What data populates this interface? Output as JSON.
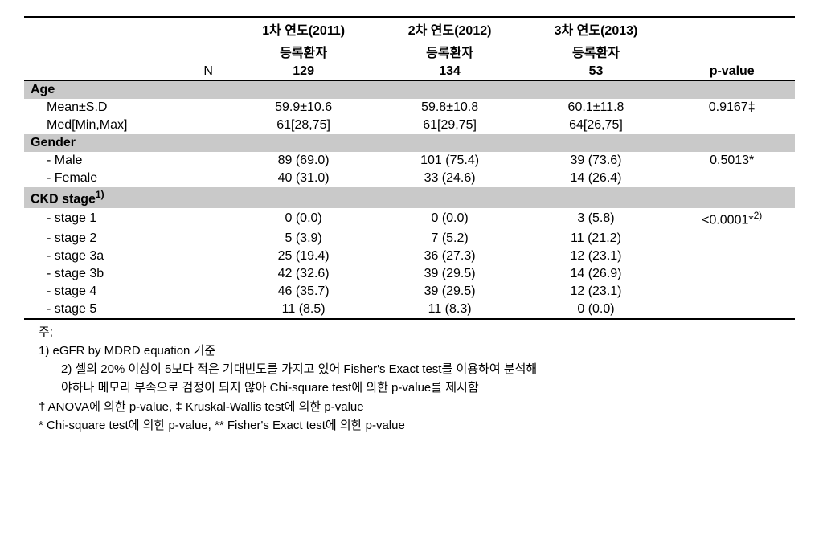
{
  "header": {
    "year1": "1차 연도(2011)",
    "year2": "2차 연도(2012)",
    "year3": "3차 연도(2013)",
    "reg": "등록환자",
    "n_label": "N",
    "n1": "129",
    "n2": "134",
    "n3": "53",
    "pvalue": "p-value"
  },
  "age": {
    "label": "Age",
    "mean_label": "Mean±S.D",
    "mean1": "59.9±10.6",
    "mean2": "59.8±10.8",
    "mean3": "60.1±11.8",
    "mean_p": "0.9167‡",
    "med_label": "Med[Min,Max]",
    "med1": "61[28,75]",
    "med2": "61[29,75]",
    "med3": "64[26,75]"
  },
  "gender": {
    "label": "Gender",
    "male_label": "- Male",
    "male1": "89 (69.0)",
    "male2": "101 (75.4)",
    "male3": "39 (73.6)",
    "male_p": "0.5013*",
    "female_label": "- Female",
    "female1": "40 (31.0)",
    "female2": "33 (24.6)",
    "female3": "14 (26.4)"
  },
  "ckd": {
    "label_pre": "CKD stage",
    "sup": "1)",
    "p": "<0.0001*",
    "p_sup": "2)",
    "rows": [
      {
        "label": "- stage 1",
        "v1": "0 (0.0)",
        "v2": "0 (0.0)",
        "v3": "3 (5.8)"
      },
      {
        "label": "- stage 2",
        "v1": "5 (3.9)",
        "v2": "7 (5.2)",
        "v3": "11 (21.2)"
      },
      {
        "label": "- stage 3a",
        "v1": "25 (19.4)",
        "v2": "36 (27.3)",
        "v3": "12 (23.1)"
      },
      {
        "label": "- stage 3b",
        "v1": "42 (32.6)",
        "v2": "39 (29.5)",
        "v3": "14 (26.9)"
      },
      {
        "label": "- stage 4",
        "v1": "46 (35.7)",
        "v2": "39 (29.5)",
        "v3": "12 (23.1)"
      },
      {
        "label": "- stage 5",
        "v1": "11 (8.5)",
        "v2": "11 (8.3)",
        "v3": "0 (0.0)"
      }
    ]
  },
  "notes": {
    "n0": "주;",
    "n1": "1) eGFR by MDRD equation 기준",
    "n2a": "2) 셀의 20% 이상이 5보다 적은 기대빈도를 가지고 있어 Fisher's Exact test를 이용하여 분석해",
    "n2b": "야하나 메모리 부족으로 검정이 되지 않아 Chi-square test에 의한 p-value를 제시함",
    "n3": "† ANOVA에 의한 p-value, ‡ Kruskal-Wallis test에 의한 p-value",
    "n4": "* Chi-square test에 의한 p-value, ** Fisher's Exact test에 의한 p-value"
  }
}
